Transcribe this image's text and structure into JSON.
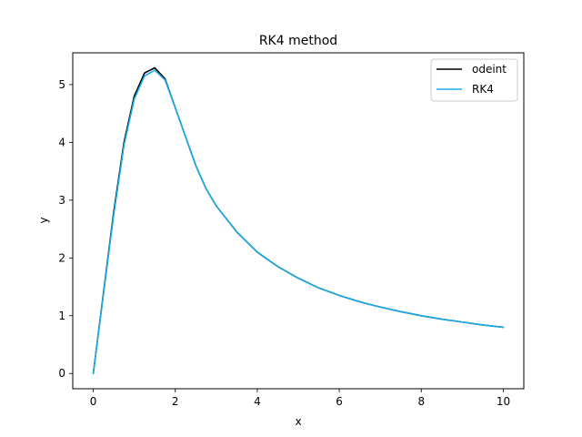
{
  "chart_data": {
    "type": "line",
    "title": "RK4 method",
    "xlabel": "x",
    "ylabel": "y",
    "xlim": [
      -0.5,
      10.5
    ],
    "ylim": [
      -0.264,
      5.55
    ],
    "xticks": [
      0,
      2,
      4,
      6,
      8,
      10
    ],
    "yticks": [
      0,
      1,
      2,
      3,
      4,
      5
    ],
    "grid": false,
    "legend": "top-right",
    "series": [
      {
        "name": "odeint",
        "color": "#000000",
        "x": [
          0,
          0.25,
          0.5,
          0.75,
          1.0,
          1.25,
          1.5,
          1.75,
          2.0,
          2.25,
          2.5,
          2.75,
          3.0,
          3.5,
          4.0,
          4.5,
          5.0,
          5.5,
          6.0,
          6.5,
          7.0,
          7.5,
          8.0,
          8.5,
          9.0,
          9.5,
          10.0
        ],
        "y": [
          0.0,
          1.4,
          2.8,
          4.0,
          4.8,
          5.2,
          5.29,
          5.1,
          4.6,
          4.1,
          3.6,
          3.2,
          2.9,
          2.45,
          2.1,
          1.85,
          1.65,
          1.48,
          1.35,
          1.24,
          1.15,
          1.07,
          1.0,
          0.94,
          0.89,
          0.84,
          0.8
        ]
      },
      {
        "name": "RK4",
        "color": "#1aaee8",
        "x": [
          0,
          0.25,
          0.5,
          0.75,
          1.0,
          1.25,
          1.5,
          1.75,
          2.0,
          2.25,
          2.5,
          2.75,
          3.0,
          3.5,
          4.0,
          4.5,
          5.0,
          5.5,
          6.0,
          6.5,
          7.0,
          7.5,
          8.0,
          8.5,
          9.0,
          9.5,
          10.0
        ],
        "y": [
          0.0,
          1.38,
          2.75,
          3.95,
          4.75,
          5.15,
          5.25,
          5.08,
          4.6,
          4.1,
          3.6,
          3.2,
          2.9,
          2.45,
          2.1,
          1.85,
          1.65,
          1.48,
          1.35,
          1.24,
          1.15,
          1.07,
          1.0,
          0.94,
          0.89,
          0.84,
          0.8
        ]
      }
    ]
  }
}
